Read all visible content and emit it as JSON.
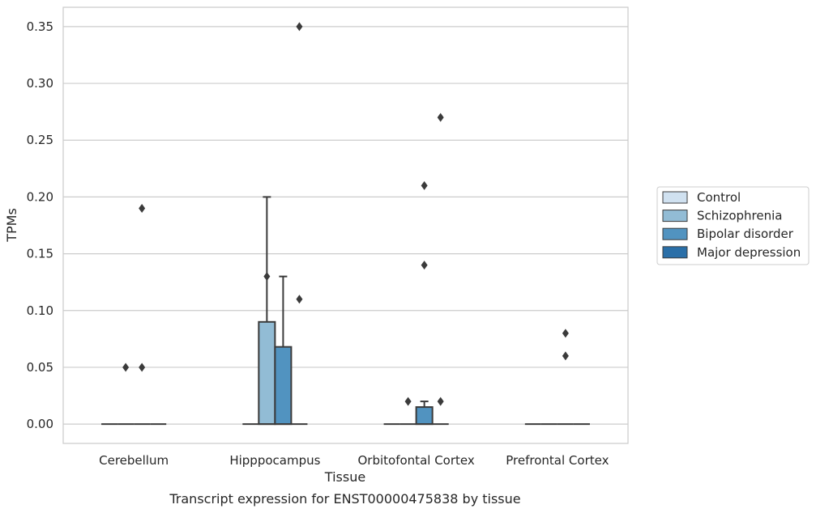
{
  "chart_data": {
    "type": "boxplot",
    "caption": "Transcript expression for ENST00000475838 by tissue",
    "xlabel": "Tissue",
    "ylabel": "TPMs",
    "ylim": [
      -0.017,
      0.367
    ],
    "yticks": [
      "0.00",
      "0.05",
      "0.10",
      "0.15",
      "0.20",
      "0.25",
      "0.30",
      "0.35"
    ],
    "grid": "horizontal",
    "legend_position": "right",
    "categories": [
      "Cerebellum",
      "Hipppocampus",
      "Orbitofontal Cortex",
      "Prefrontal Cortex"
    ],
    "series": [
      {
        "name": "Control",
        "color": "#d0e1f0",
        "boxes": [
          {
            "q1": 0,
            "median": 0,
            "q3": 0,
            "whislo": 0,
            "whishi": 0,
            "fliers": []
          },
          {
            "q1": 0,
            "median": 0,
            "q3": 0,
            "whislo": 0,
            "whishi": 0,
            "fliers": []
          },
          {
            "q1": 0,
            "median": 0,
            "q3": 0,
            "whislo": 0,
            "whishi": 0,
            "fliers": []
          },
          {
            "q1": 0,
            "median": 0,
            "q3": 0,
            "whislo": 0,
            "whishi": 0,
            "fliers": []
          }
        ]
      },
      {
        "name": "Schizophrenia",
        "color": "#92bcd5",
        "boxes": [
          {
            "q1": 0,
            "median": 0,
            "q3": 0,
            "whislo": 0,
            "whishi": 0,
            "fliers": [
              0.05
            ]
          },
          {
            "q1": 0,
            "median": 0,
            "q3": 0.09,
            "whislo": 0,
            "whishi": 0.2,
            "fliers": [
              0.13
            ]
          },
          {
            "q1": 0,
            "median": 0,
            "q3": 0,
            "whislo": 0,
            "whishi": 0,
            "fliers": [
              0.02
            ]
          },
          {
            "q1": 0,
            "median": 0,
            "q3": 0,
            "whislo": 0,
            "whishi": 0,
            "fliers": []
          }
        ]
      },
      {
        "name": "Bipolar disorder",
        "color": "#5193c0",
        "boxes": [
          {
            "q1": 0,
            "median": 0,
            "q3": 0,
            "whislo": 0,
            "whishi": 0,
            "fliers": [
              0.05,
              0.19
            ]
          },
          {
            "q1": 0,
            "median": 0,
            "q3": 0.068,
            "whislo": 0,
            "whishi": 0.13,
            "fliers": []
          },
          {
            "q1": 0,
            "median": 0,
            "q3": 0.015,
            "whislo": 0,
            "whishi": 0.02,
            "fliers": [
              0.14,
              0.21
            ]
          },
          {
            "q1": 0,
            "median": 0,
            "q3": 0,
            "whislo": 0,
            "whishi": 0,
            "fliers": [
              0.06,
              0.08
            ]
          }
        ]
      },
      {
        "name": "Major depression",
        "color": "#2a6fa8",
        "boxes": [
          {
            "q1": 0,
            "median": 0,
            "q3": 0,
            "whislo": 0,
            "whishi": 0,
            "fliers": []
          },
          {
            "q1": 0,
            "median": 0,
            "q3": 0,
            "whislo": 0,
            "whishi": 0,
            "fliers": [
              0.11,
              0.35
            ]
          },
          {
            "q1": 0,
            "median": 0,
            "q3": 0,
            "whislo": 0,
            "whishi": 0,
            "fliers": [
              0.02,
              0.27
            ]
          },
          {
            "q1": 0,
            "median": 0,
            "q3": 0,
            "whislo": 0,
            "whishi": 0,
            "fliers": []
          }
        ]
      }
    ]
  }
}
